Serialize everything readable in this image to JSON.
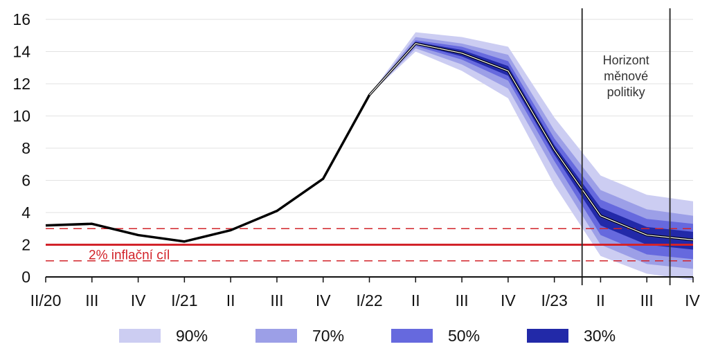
{
  "chart_data": {
    "type": "line",
    "categories": [
      "II/20",
      "III",
      "IV",
      "I/21",
      "II",
      "III",
      "IV",
      "I/22",
      "II",
      "III",
      "IV",
      "I/23",
      "II",
      "III",
      "IV"
    ],
    "y_ticks": [
      "0",
      "2",
      "4",
      "6",
      "8",
      "10",
      "12",
      "14",
      "16"
    ],
    "ylim": [
      0,
      16.3
    ],
    "grid": true,
    "central_forecast": [
      3.2,
      3.3,
      2.6,
      2.2,
      2.9,
      4.1,
      6.1,
      11.3,
      14.5,
      13.9,
      12.8,
      7.9,
      3.8,
      2.6,
      2.3
    ],
    "fan_start_index": 7,
    "fan_bands": [
      {
        "name": "90%",
        "color": "#cccdf2",
        "lower": [
          11.3,
          14.0,
          12.8,
          11.1,
          5.7,
          1.3,
          0.2,
          -0.2
        ],
        "upper": [
          11.3,
          15.2,
          14.9,
          14.3,
          9.9,
          6.3,
          5.1,
          4.7
        ]
      },
      {
        "name": "70%",
        "color": "#9c9fe7",
        "lower": [
          11.3,
          14.2,
          13.2,
          11.7,
          6.6,
          2.0,
          0.8,
          0.5
        ],
        "upper": [
          11.3,
          14.9,
          14.5,
          13.8,
          9.1,
          5.4,
          4.2,
          3.8
        ]
      },
      {
        "name": "50%",
        "color": "#6669de",
        "lower": [
          11.3,
          14.35,
          13.5,
          12.2,
          7.2,
          2.6,
          1.4,
          1.1
        ],
        "upper": [
          11.3,
          14.7,
          14.3,
          13.4,
          8.6,
          4.8,
          3.6,
          3.3
        ]
      },
      {
        "name": "30%",
        "color": "#2229a8",
        "lower": [
          11.3,
          14.45,
          13.7,
          12.5,
          7.6,
          3.2,
          2.0,
          1.7
        ],
        "upper": [
          11.3,
          14.6,
          14.1,
          13.1,
          8.2,
          4.3,
          3.1,
          2.8
        ]
      }
    ],
    "inflation_target": 2,
    "tolerance_band": [
      1,
      3
    ],
    "target_label": "2% inflační cíl",
    "policy_horizon": {
      "start_index": 11.6,
      "end_index": 13.5,
      "label": [
        "Horizont",
        "měnové",
        "politiky"
      ]
    },
    "legend": [
      {
        "label": "90%",
        "color": "#cccdf2"
      },
      {
        "label": "70%",
        "color": "#9c9fe7"
      },
      {
        "label": "50%",
        "color": "#6669de"
      },
      {
        "label": "30%",
        "color": "#2229a8"
      }
    ],
    "legend_position": "bottom",
    "colors": {
      "line": "#000000",
      "target": "#d2232a",
      "grid": "#e2e2e2",
      "axis": "#111111",
      "horizon_line": "#333333"
    }
  }
}
